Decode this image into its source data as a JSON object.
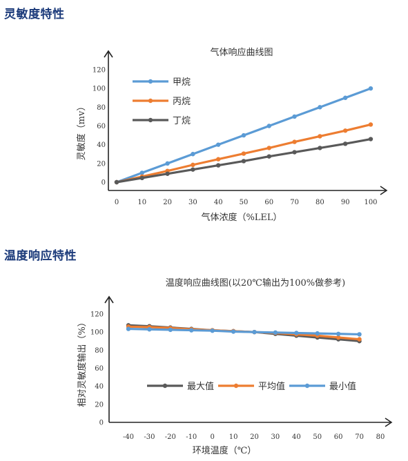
{
  "sections": [
    {
      "title": "灵敏度特性"
    },
    {
      "title": "温度响应特性"
    }
  ],
  "chart_data": [
    {
      "type": "line",
      "title": "气体响应曲线图",
      "xlabel": "气体浓度（%LEL）",
      "ylabel": "灵敏度（mv）",
      "x": [
        0,
        10,
        20,
        30,
        40,
        50,
        60,
        70,
        80,
        90,
        100
      ],
      "xticks": [
        "0",
        "10",
        "20",
        "30",
        "40",
        "50",
        "60",
        "70",
        "80",
        "90",
        "100"
      ],
      "yticks": [
        "0",
        "20",
        "40",
        "60",
        "80",
        "100",
        "120"
      ],
      "xlim": [
        0,
        100
      ],
      "ylim": [
        0,
        120
      ],
      "grid": false,
      "legend": "top-left",
      "series": [
        {
          "name": "甲烷",
          "color": "#5b9bd5",
          "values": [
            0,
            10,
            20,
            30,
            40,
            50,
            60,
            70,
            80,
            90,
            100
          ]
        },
        {
          "name": "丙烷",
          "color": "#ed7d31",
          "values": [
            0,
            6,
            12,
            18.5,
            24.5,
            30.5,
            36.5,
            43,
            49,
            55,
            61.5
          ]
        },
        {
          "name": "丁烷",
          "color": "#595959",
          "values": [
            0,
            4.5,
            9,
            13.5,
            18,
            22.5,
            27.5,
            32,
            36.5,
            41,
            46
          ]
        }
      ]
    },
    {
      "type": "line",
      "title": "温度响应曲线图(以20℃输出为100%做参考)",
      "xlabel": "环境温度（℃）",
      "ylabel": "相对灵敏度输出（%）",
      "x": [
        -40,
        -30,
        -20,
        -10,
        0,
        10,
        20,
        30,
        40,
        50,
        60,
        70
      ],
      "xticks": [
        "-40",
        "-30",
        "-20",
        "-10",
        "0",
        "10",
        "20",
        "30",
        "40",
        "50",
        "60",
        "70",
        "80"
      ],
      "yticks": [
        "0",
        "20",
        "40",
        "60",
        "80",
        "100",
        "120"
      ],
      "xlim": [
        -40,
        80
      ],
      "ylim": [
        0,
        120
      ],
      "grid": false,
      "legend": "center",
      "series": [
        {
          "name": "最大值",
          "color": "#595959",
          "values": [
            107.5,
            106.5,
            105,
            103.5,
            102,
            101,
            100,
            98,
            96,
            94,
            92,
            90
          ]
        },
        {
          "name": "平均值",
          "color": "#ed7d31",
          "values": [
            106,
            105.5,
            104.5,
            103,
            102,
            101,
            100,
            99,
            97.5,
            96,
            94,
            92
          ]
        },
        {
          "name": "最小值",
          "color": "#5b9bd5",
          "values": [
            103.5,
            103,
            102.5,
            102,
            101.5,
            100.5,
            100,
            99.5,
            99,
            98.5,
            98,
            97.5
          ]
        }
      ]
    }
  ]
}
